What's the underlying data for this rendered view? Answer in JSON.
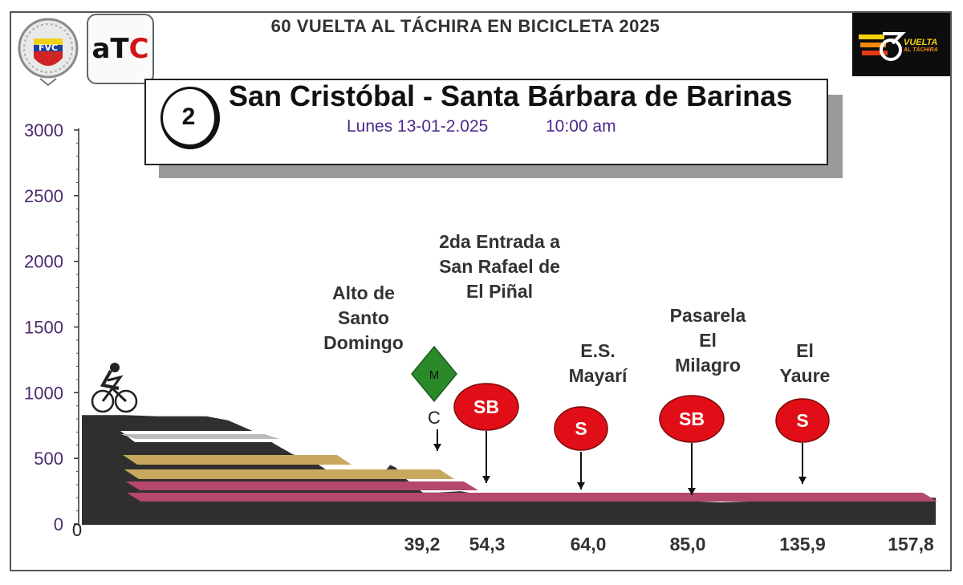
{
  "header": {
    "race_title": "60 VUELTA AL TÁCHIRA EN BICICLETA 2025",
    "logo_atc_text_a": "a",
    "logo_atc_text_t": "T",
    "logo_atc_text_c": "C",
    "logo_fvc_text": "FVC",
    "logo_vuelta_text": "VUELTA",
    "logo_vuelta_sub": "AL TÁCHIRA"
  },
  "stage": {
    "number": "2",
    "route": "San Cristóbal - Santa Bárbara de Barinas",
    "date": "Lunes 13-01-2.025",
    "time": "10:00 am"
  },
  "annotations": {
    "alto": "Alto de\nSanto\nDomingo",
    "entrada": "2da Entrada a\nSan Rafael de\nEl Piñal",
    "mayari": "E.S.\nMayarí",
    "pasarela": "Pasarela\nEl\nMilagro",
    "yaure": "El\nYaure"
  },
  "colors": {
    "profile_fill": "#2f2f2f",
    "band_white": "#ffffff",
    "band_tan": "#c8a85e",
    "band_red": "#b5486a",
    "sprint_red": "#e10e17",
    "mountain_green": "#2a8a2a",
    "axis_label": "#4b2a6e"
  },
  "chart_data": {
    "type": "area",
    "title": "",
    "xlabel": "",
    "ylabel": "",
    "ylim": [
      0,
      3000
    ],
    "xlim": [
      0,
      157.8
    ],
    "y_ticks": [
      0,
      500,
      1000,
      1500,
      2000,
      2500,
      3000
    ],
    "x_tick_labels": [
      {
        "x": 39.2,
        "label": "39,2"
      },
      {
        "x": 54.3,
        "label": "54,3"
      },
      {
        "x": 64.0,
        "label": "64,0"
      },
      {
        "x": 85.0,
        "label": "85,0"
      },
      {
        "x": 135.9,
        "label": "135,9"
      },
      {
        "x": 157.8,
        "label": "157,8"
      }
    ],
    "x_origin_label": "0",
    "series": [
      {
        "points": [
          [
            0,
            830
          ],
          [
            8,
            830
          ],
          [
            14,
            820
          ],
          [
            23,
            820
          ],
          [
            27,
            790
          ],
          [
            32,
            700
          ],
          [
            36,
            600
          ],
          [
            39,
            530
          ],
          [
            42,
            500
          ],
          [
            46,
            390
          ],
          [
            50,
            360
          ],
          [
            54,
            350
          ],
          [
            56,
            400
          ],
          [
            57,
            450
          ],
          [
            58,
            430
          ],
          [
            60,
            340
          ],
          [
            63,
            240
          ],
          [
            66,
            240
          ],
          [
            70,
            250
          ],
          [
            74,
            220
          ],
          [
            78,
            200
          ],
          [
            82,
            210
          ],
          [
            86,
            205
          ],
          [
            90,
            200
          ],
          [
            95,
            190
          ],
          [
            100,
            180
          ],
          [
            105,
            175
          ],
          [
            110,
            180
          ],
          [
            115,
            170
          ],
          [
            118,
            165
          ],
          [
            122,
            170
          ],
          [
            126,
            175
          ],
          [
            130,
            180
          ],
          [
            134,
            200
          ],
          [
            138,
            215
          ],
          [
            142,
            225
          ],
          [
            146,
            215
          ],
          [
            150,
            210
          ],
          [
            154,
            205
          ],
          [
            157.8,
            200
          ]
        ]
      }
    ],
    "markers": [
      {
        "kind": "mountain",
        "symbol": "M",
        "category": "C",
        "x": 56,
        "name": "Alto de Santo Domingo"
      },
      {
        "kind": "sprint_bonus",
        "symbol": "SB",
        "x": 63,
        "name": "2da Entrada a San Rafael de El Piñal"
      },
      {
        "kind": "sprint",
        "symbol": "S",
        "x": 80,
        "name": "E.S. Mayarí"
      },
      {
        "kind": "sprint_bonus",
        "symbol": "SB",
        "x": 100,
        "name": "Pasarela El Milagro"
      },
      {
        "kind": "sprint",
        "symbol": "S",
        "x": 133,
        "name": "El Yaure"
      }
    ],
    "grid": false,
    "legend": "none"
  }
}
